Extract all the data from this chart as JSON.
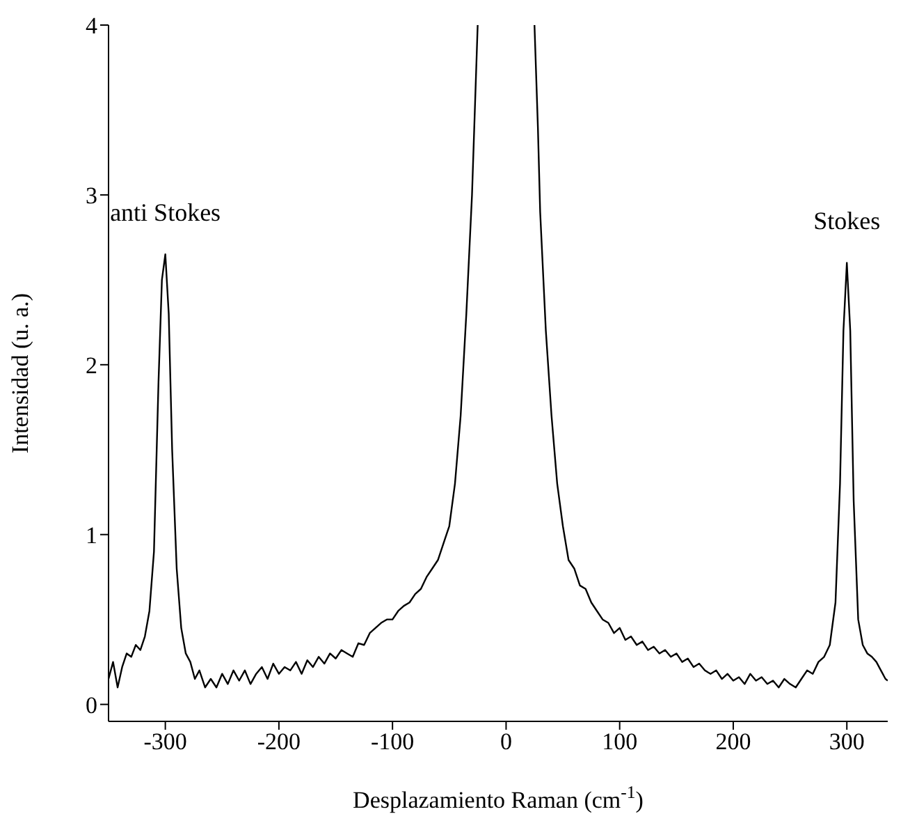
{
  "chart_data": {
    "type": "line",
    "xlabel": "Desplazamiento Raman (cm$^{-1}$)",
    "ylabel": "Intensidad (u. a.)",
    "x": [
      -350,
      -346,
      -342,
      -338,
      -334,
      -330,
      -326,
      -322,
      -318,
      -314,
      -310,
      -306,
      -303,
      -300,
      -297,
      -294,
      -290,
      -286,
      -282,
      -278,
      -274,
      -270,
      -265,
      -260,
      -255,
      -250,
      -245,
      -240,
      -235,
      -230,
      -225,
      -220,
      -215,
      -210,
      -205,
      -200,
      -195,
      -190,
      -185,
      -180,
      -175,
      -170,
      -165,
      -160,
      -155,
      -150,
      -145,
      -140,
      -135,
      -130,
      -125,
      -120,
      -115,
      -110,
      -105,
      -100,
      -95,
      -90,
      -85,
      -80,
      -75,
      -70,
      -65,
      -60,
      -55,
      -50,
      -45,
      -40,
      -35,
      -30,
      -27,
      -25,
      0,
      25,
      28,
      30,
      35,
      40,
      45,
      50,
      55,
      60,
      65,
      70,
      75,
      80,
      85,
      90,
      95,
      100,
      105,
      110,
      115,
      120,
      125,
      130,
      135,
      140,
      145,
      150,
      155,
      160,
      165,
      170,
      175,
      180,
      185,
      190,
      195,
      200,
      205,
      210,
      215,
      220,
      225,
      230,
      235,
      240,
      245,
      250,
      255,
      260,
      265,
      270,
      275,
      280,
      285,
      290,
      294,
      297,
      300,
      303,
      306,
      310,
      314,
      318,
      322,
      326,
      330,
      334,
      336
    ],
    "series": [
      {
        "color": "#000000",
        "values": [
          0.15,
          0.25,
          0.1,
          0.22,
          0.3,
          0.28,
          0.35,
          0.32,
          0.4,
          0.55,
          0.9,
          1.9,
          2.5,
          2.65,
          2.3,
          1.5,
          0.8,
          0.45,
          0.3,
          0.25,
          0.15,
          0.2,
          0.1,
          0.15,
          0.1,
          0.18,
          0.12,
          0.2,
          0.14,
          0.2,
          0.12,
          0.18,
          0.22,
          0.15,
          0.24,
          0.18,
          0.22,
          0.2,
          0.25,
          0.18,
          0.26,
          0.22,
          0.28,
          0.24,
          0.3,
          0.27,
          0.32,
          0.3,
          0.28,
          0.36,
          0.35,
          0.42,
          0.45,
          0.48,
          0.5,
          0.5,
          0.55,
          0.58,
          0.6,
          0.65,
          0.68,
          0.75,
          0.8,
          0.85,
          0.95,
          1.05,
          1.3,
          1.7,
          2.3,
          3.0,
          3.6,
          4.0,
          null,
          4.0,
          3.4,
          2.9,
          2.2,
          1.7,
          1.3,
          1.05,
          0.85,
          0.8,
          0.7,
          0.68,
          0.6,
          0.55,
          0.5,
          0.48,
          0.42,
          0.45,
          0.38,
          0.4,
          0.35,
          0.37,
          0.32,
          0.34,
          0.3,
          0.32,
          0.28,
          0.3,
          0.25,
          0.27,
          0.22,
          0.24,
          0.2,
          0.18,
          0.2,
          0.15,
          0.18,
          0.14,
          0.16,
          0.12,
          0.18,
          0.14,
          0.16,
          0.12,
          0.14,
          0.1,
          0.15,
          0.12,
          0.1,
          0.15,
          0.2,
          0.18,
          0.25,
          0.28,
          0.35,
          0.6,
          1.3,
          2.2,
          2.6,
          2.2,
          1.2,
          0.5,
          0.35,
          0.3,
          0.28,
          0.25,
          0.2,
          0.15,
          0.14
        ]
      }
    ],
    "xlim": [
      -350,
      336
    ],
    "ylim": [
      -0.1,
      4
    ],
    "xticks": [
      -300,
      -200,
      -100,
      0,
      100,
      200,
      300
    ],
    "yticks": [
      0,
      1,
      2,
      3,
      4
    ],
    "grid": false,
    "legend": false,
    "marker": "none",
    "line_style": "solid",
    "annotations": [
      {
        "text": "anti Stokes",
        "x": -300,
        "y": 2.65
      },
      {
        "text": "Stokes",
        "x": 300,
        "y": 2.6
      }
    ]
  }
}
